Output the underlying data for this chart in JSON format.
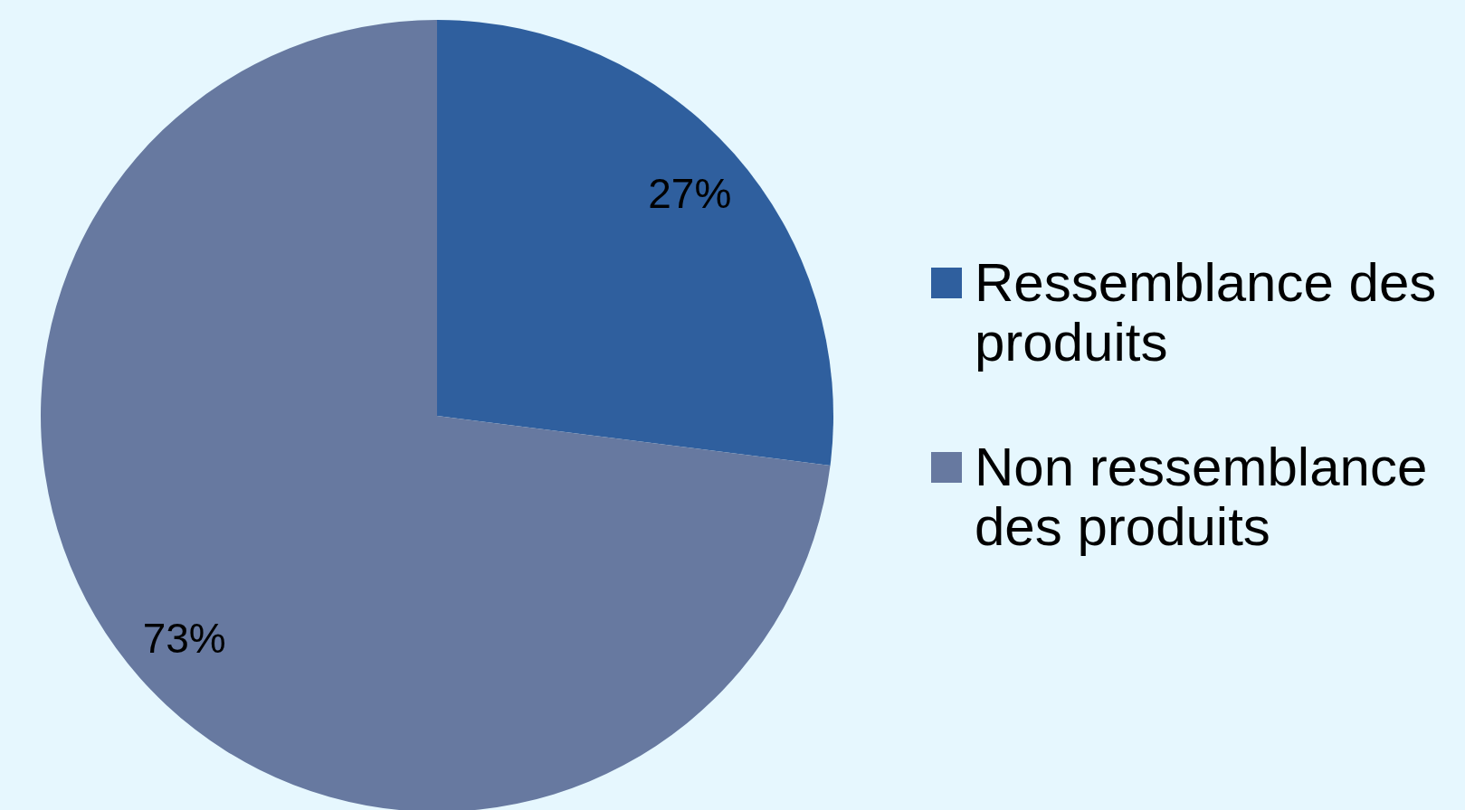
{
  "chart_data": {
    "type": "pie",
    "categories": [
      "Ressemblance des produits",
      "Non ressemblance des produits"
    ],
    "values": [
      27,
      73
    ],
    "colors": [
      "#2f5f9e",
      "#6779a0"
    ],
    "value_labels": [
      "27%",
      "73%"
    ],
    "legend": "right"
  }
}
